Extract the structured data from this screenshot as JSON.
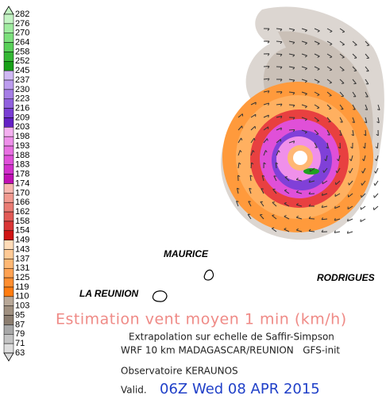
{
  "legend": {
    "labels": [
      282,
      276,
      270,
      264,
      258,
      252,
      245,
      237,
      230,
      223,
      216,
      209,
      203,
      198,
      193,
      188,
      183,
      178,
      174,
      170,
      166,
      162,
      158,
      154,
      149,
      143,
      137,
      131,
      125,
      119,
      110,
      103,
      95,
      87,
      79,
      71,
      63
    ],
    "colors": [
      "#c4f4c4",
      "#a0eca0",
      "#7ce07c",
      "#58d058",
      "#34b834",
      "#18a018",
      "#d0b8f4",
      "#bc9cee",
      "#a67ee6",
      "#9060de",
      "#7a3ed4",
      "#6420c4",
      "#f4b0f0",
      "#ee90ea",
      "#e870e2",
      "#e050da",
      "#d230cc",
      "#c010b4",
      "#f8b8b0",
      "#f29a90",
      "#ea7c74",
      "#e25a56",
      "#da3636",
      "#d01414",
      "#ffdcb8",
      "#ffca96",
      "#ffb874",
      "#ffa252",
      "#ff8e30",
      "#ff7c10",
      "#b8a898",
      "#a09080",
      "#8c7e70",
      "#a8a8a8",
      "#c4c4c4",
      "#dedede"
    ]
  },
  "places": {
    "maurice": "MAURICE",
    "reunion": "LA REUNION",
    "rodrigues": "RODRIGUES"
  },
  "caption": {
    "title": "Estimation vent moyen 1 min (km/h)",
    "line1": "Extrapolation sur echelle de Saffir-Simpson",
    "line2": "WRF 10 km MADAGASCAR/REUNION   GFS-init",
    "source": "Observatoire KERAUNOS",
    "valid_label": "Valid.",
    "valid_time": "06Z Wed 08 APR 2015"
  }
}
